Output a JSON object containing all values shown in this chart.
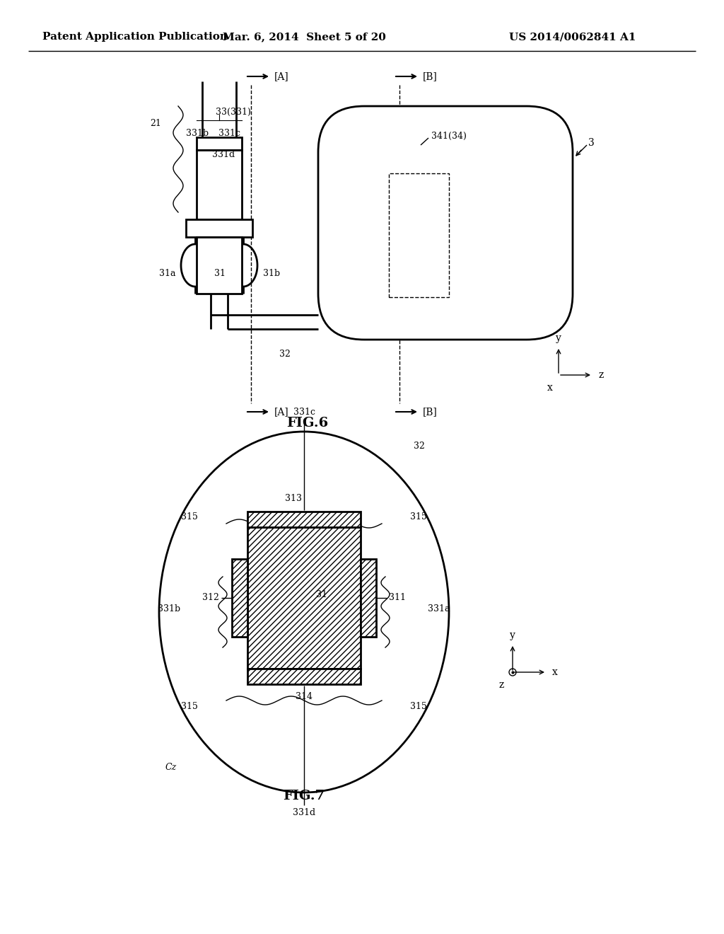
{
  "header_left": "Patent Application Publication",
  "header_mid": "Mar. 6, 2014  Sheet 5 of 20",
  "header_right": "US 2014/0062841 A1",
  "fig6_caption": "FIG.6",
  "fig7_caption": "FIG.7",
  "bg_color": "#ffffff",
  "line_color": "#000000"
}
